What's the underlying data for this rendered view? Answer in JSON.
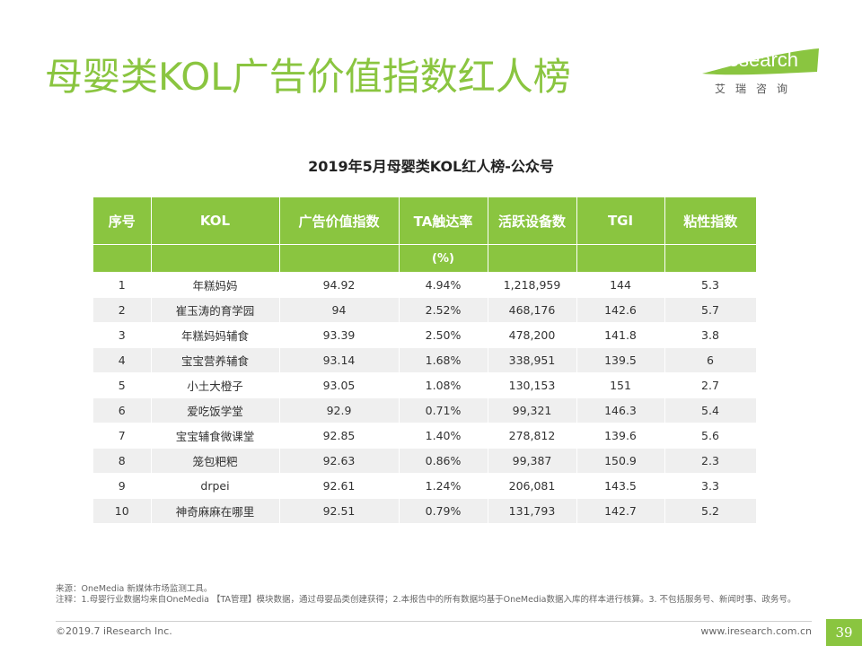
{
  "page_title": "母婴类KOL广告价值指数红人榜",
  "logo": {
    "text": "iResearch",
    "sub": "艾瑞咨询"
  },
  "subtitle": "2019年5月母婴类KOL红人榜-公众号",
  "table": {
    "headers": [
      "序号",
      "KOL",
      "广告价值指数",
      "TA触达率",
      "活跃设备数",
      "TGI",
      "粘性指数"
    ],
    "unit_row": [
      "",
      "",
      "",
      "(%)",
      "",
      "",
      ""
    ],
    "rows": [
      [
        "1",
        "年糕妈妈",
        "94.92",
        "4.94%",
        "1,218,959",
        "144",
        "5.3"
      ],
      [
        "2",
        "崔玉涛的育学园",
        "94",
        "2.52%",
        "468,176",
        "142.6",
        "5.7"
      ],
      [
        "3",
        "年糕妈妈辅食",
        "93.39",
        "2.50%",
        "478,200",
        "141.8",
        "3.8"
      ],
      [
        "4",
        "宝宝营养辅食",
        "93.14",
        "1.68%",
        "338,951",
        "139.5",
        "6"
      ],
      [
        "5",
        "小土大橙子",
        "93.05",
        "1.08%",
        "130,153",
        "151",
        "2.7"
      ],
      [
        "6",
        "爱吃饭学堂",
        "92.9",
        "0.71%",
        "99,321",
        "146.3",
        "5.4"
      ],
      [
        "7",
        "宝宝辅食微课堂",
        "92.85",
        "1.40%",
        "278,812",
        "139.6",
        "5.6"
      ],
      [
        "8",
        "笼包粑粑",
        "92.63",
        "0.86%",
        "99,387",
        "150.9",
        "2.3"
      ],
      [
        "9",
        "drpei",
        "92.61",
        "1.24%",
        "206,081",
        "143.5",
        "3.3"
      ],
      [
        "10",
        "神奇麻麻在哪里",
        "92.51",
        "0.79%",
        "131,793",
        "142.7",
        "5.2"
      ]
    ]
  },
  "footnotes": {
    "source": "来源：OneMedia 新媒体市场监测工具。",
    "note": "注释：1.母婴行业数据均来自OneMedia 【TA管理】模块数据，通过母婴品类创建获得；2.本报告中的所有数据均基于OneMedia数据入库的样本进行核算。3. 不包括服务号、新闻时事、政务号。"
  },
  "footer": {
    "copyright": "©2019.7 iResearch Inc.",
    "website": "www.iresearch.com.cn",
    "page_number": "39"
  },
  "colors": {
    "accent": "#8ac540"
  }
}
